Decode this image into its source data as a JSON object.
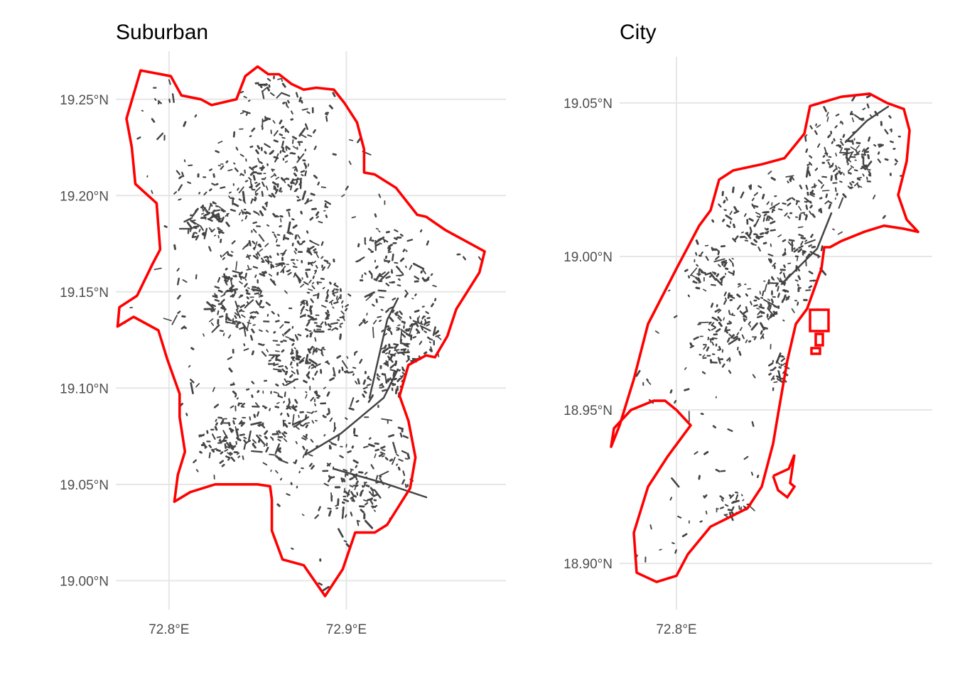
{
  "figure": {
    "background": "#ffffff",
    "grid_color": "#e6e6e6",
    "boundary_color": "#ff0000",
    "feature_color": "#444444"
  },
  "panels": [
    {
      "title": "Suburban",
      "x_ticks": [
        72.8,
        72.9
      ],
      "x_tick_labels": [
        "72.8°E",
        "72.9°E"
      ],
      "y_ticks": [
        19.25,
        19.2,
        19.15,
        19.1,
        19.05,
        19.0
      ],
      "y_tick_labels": [
        "19.25°N",
        "19.20°N",
        "19.15°N",
        "19.10°N",
        "19.05°N",
        "19.00°N"
      ],
      "lon_range": [
        72.77,
        72.99
      ],
      "lat_range": [
        18.985,
        19.275
      ],
      "boundary_lonlat": [
        [
          72.784,
          19.265
        ],
        [
          72.801,
          19.262
        ],
        [
          72.807,
          19.252
        ],
        [
          72.818,
          19.25
        ],
        [
          72.824,
          19.247
        ],
        [
          72.838,
          19.25
        ],
        [
          72.843,
          19.262
        ],
        [
          72.85,
          19.267
        ],
        [
          72.856,
          19.263
        ],
        [
          72.862,
          19.263
        ],
        [
          72.869,
          19.258
        ],
        [
          72.876,
          19.255
        ],
        [
          72.883,
          19.256
        ],
        [
          72.893,
          19.255
        ],
        [
          72.899,
          19.248
        ],
        [
          72.906,
          19.238
        ],
        [
          72.91,
          19.224
        ],
        [
          72.91,
          19.212
        ],
        [
          72.916,
          19.211
        ],
        [
          72.928,
          19.204
        ],
        [
          72.94,
          19.19
        ],
        [
          72.945,
          19.189
        ],
        [
          72.956,
          19.182
        ],
        [
          72.966,
          19.177
        ],
        [
          72.978,
          19.171
        ],
        [
          72.975,
          19.16
        ],
        [
          72.962,
          19.141
        ],
        [
          72.957,
          19.127
        ],
        [
          72.95,
          19.116
        ],
        [
          72.945,
          19.117
        ],
        [
          72.935,
          19.112
        ],
        [
          72.93,
          19.096
        ],
        [
          72.935,
          19.083
        ],
        [
          72.939,
          19.064
        ],
        [
          72.936,
          19.048
        ],
        [
          72.923,
          19.029
        ],
        [
          72.916,
          19.025
        ],
        [
          72.905,
          19.025
        ],
        [
          72.898,
          19.006
        ],
        [
          72.888,
          18.992
        ],
        [
          72.876,
          19.008
        ],
        [
          72.864,
          19.011
        ],
        [
          72.858,
          19.026
        ],
        [
          72.858,
          19.042
        ],
        [
          72.857,
          19.049
        ],
        [
          72.85,
          19.05
        ],
        [
          72.826,
          19.05
        ],
        [
          72.812,
          19.046
        ],
        [
          72.803,
          19.041
        ],
        [
          72.805,
          19.055
        ],
        [
          72.809,
          19.067
        ],
        [
          72.806,
          19.085
        ],
        [
          72.806,
          19.097
        ],
        [
          72.799,
          19.115
        ],
        [
          72.794,
          19.13
        ],
        [
          72.78,
          19.137
        ],
        [
          72.771,
          19.132
        ],
        [
          72.772,
          19.142
        ],
        [
          72.782,
          19.148
        ],
        [
          72.791,
          19.165
        ],
        [
          72.795,
          19.172
        ],
        [
          72.793,
          19.196
        ],
        [
          72.781,
          19.206
        ],
        [
          72.779,
          19.225
        ],
        [
          72.776,
          19.24
        ],
        [
          72.784,
          19.265
        ]
      ]
    },
    {
      "title": "City",
      "x_ticks": [
        72.8
      ],
      "x_tick_labels": [
        "72.8°E"
      ],
      "y_ticks": [
        19.05,
        19.0,
        18.95,
        18.9
      ],
      "y_tick_labels": [
        "19.05°N",
        "19.00°N",
        "18.95°N",
        "18.90°N"
      ],
      "lon_range": [
        72.78,
        72.89
      ],
      "lat_range": [
        18.885,
        19.065
      ],
      "boundary_lonlat": [
        [
          72.847,
          19.049
        ],
        [
          72.858,
          19.052
        ],
        [
          72.868,
          19.053
        ],
        [
          72.874,
          19.05
        ],
        [
          72.88,
          19.048
        ],
        [
          72.882,
          19.041
        ],
        [
          72.881,
          19.031
        ],
        [
          72.878,
          19.02
        ],
        [
          72.881,
          19.012
        ],
        [
          72.885,
          19.008
        ],
        [
          72.88,
          19.009
        ],
        [
          72.873,
          19.01
        ],
        [
          72.866,
          19.008
        ],
        [
          72.858,
          19.005
        ],
        [
          72.854,
          19.003
        ],
        [
          72.852,
          19.003
        ],
        [
          72.851,
          18.996
        ],
        [
          72.846,
          18.983
        ],
        [
          72.842,
          18.978
        ],
        [
          72.839,
          18.966
        ],
        [
          72.836,
          18.95
        ],
        [
          72.834,
          18.939
        ],
        [
          72.83,
          18.925
        ],
        [
          72.825,
          18.918
        ],
        [
          72.812,
          18.912
        ],
        [
          72.804,
          18.903
        ],
        [
          72.8,
          18.896
        ],
        [
          72.793,
          18.894
        ],
        [
          72.786,
          18.897
        ],
        [
          72.785,
          18.91
        ],
        [
          72.79,
          18.925
        ],
        [
          72.797,
          18.935
        ],
        [
          72.805,
          18.945
        ],
        [
          72.8,
          18.95
        ],
        [
          72.796,
          18.953
        ],
        [
          72.792,
          18.953
        ],
        [
          72.784,
          18.95
        ],
        [
          72.778,
          18.944
        ],
        [
          72.777,
          18.938
        ],
        [
          72.78,
          18.945
        ],
        [
          72.785,
          18.96
        ],
        [
          72.79,
          18.978
        ],
        [
          72.8,
          18.996
        ],
        [
          72.808,
          19.01
        ],
        [
          72.812,
          19.015
        ],
        [
          72.815,
          19.025
        ],
        [
          72.82,
          19.028
        ],
        [
          72.83,
          19.03
        ],
        [
          72.838,
          19.032
        ],
        [
          72.845,
          19.04
        ],
        [
          72.847,
          19.049
        ]
      ]
    }
  ]
}
